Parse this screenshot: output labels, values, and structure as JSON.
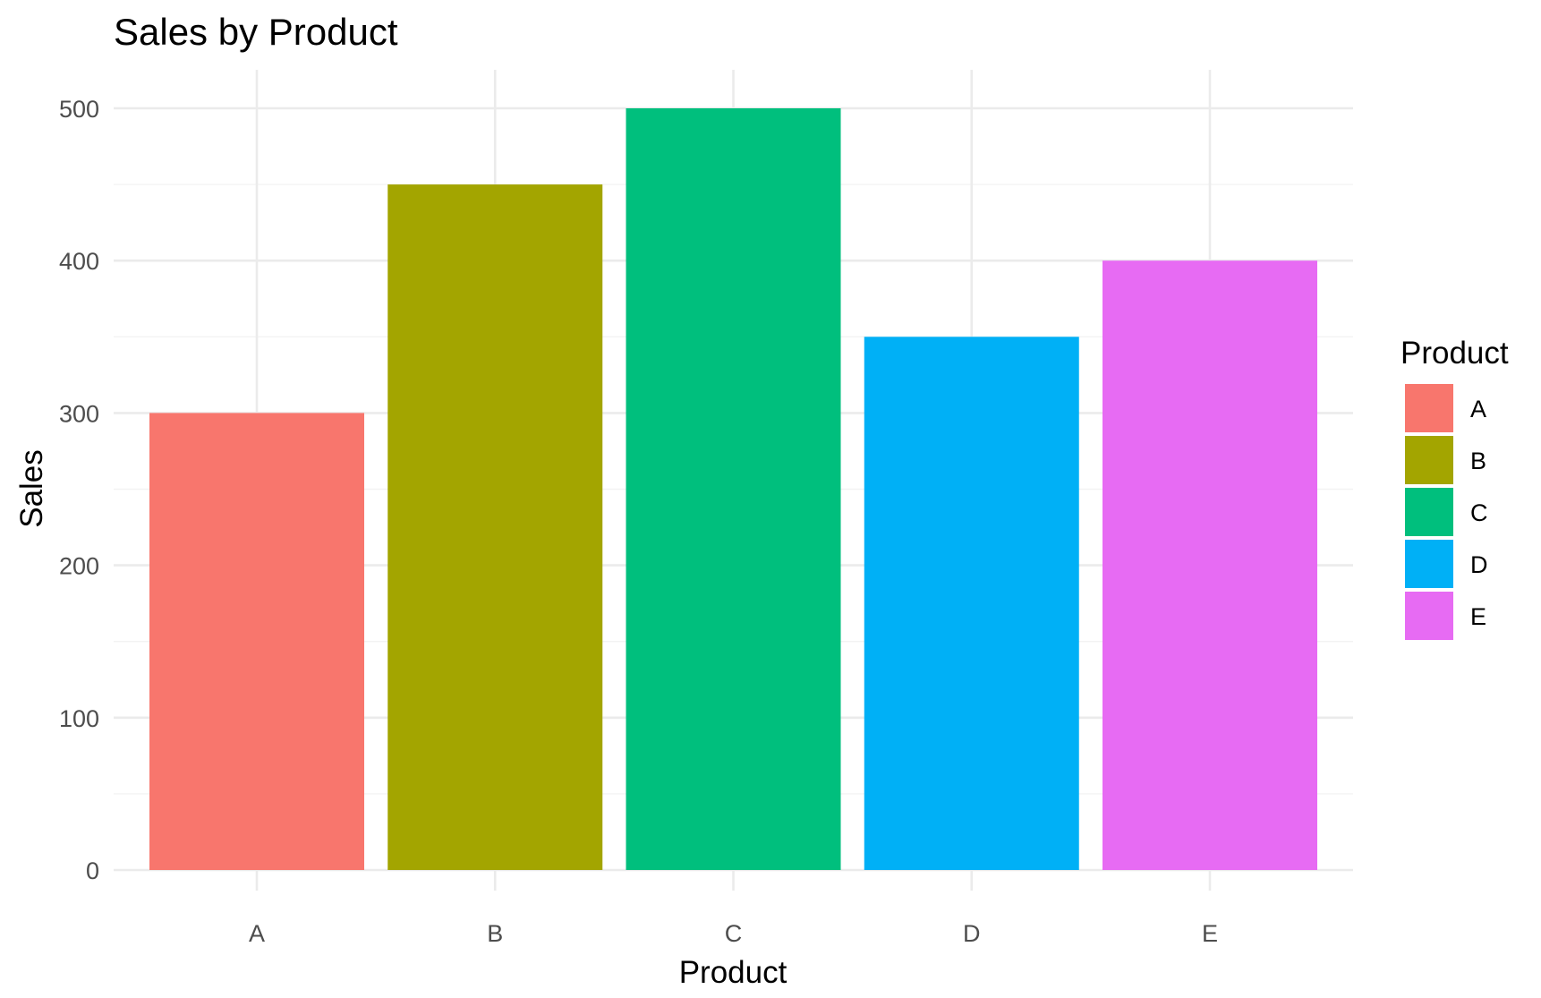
{
  "chart_data": {
    "type": "bar",
    "title": "Sales by Product",
    "xlabel": "Product",
    "ylabel": "Sales",
    "categories": [
      "A",
      "B",
      "C",
      "D",
      "E"
    ],
    "values": [
      300,
      450,
      500,
      350,
      400
    ],
    "colors": [
      "#F8766D",
      "#A3A500",
      "#00BF7D",
      "#00B0F6",
      "#E76BF3"
    ],
    "ylim": [
      0,
      500
    ],
    "yticks": [
      0,
      100,
      200,
      300,
      400,
      500
    ],
    "ytick_labels": [
      "0",
      "100",
      "200",
      "300",
      "400",
      "500"
    ],
    "grid": true,
    "legend": {
      "title": "Product",
      "position": "right",
      "entries": [
        "A",
        "B",
        "C",
        "D",
        "E"
      ]
    }
  }
}
